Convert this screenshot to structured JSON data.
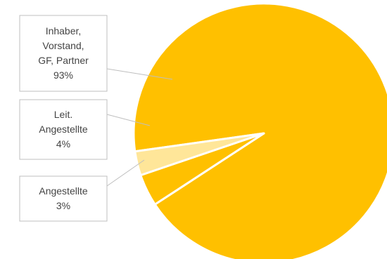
{
  "chart_data": {
    "type": "pie",
    "slices": [
      {
        "label_lines": [
          "Inhaber,",
          "Vorstand,",
          "GF, Partner"
        ],
        "value_label": "93%",
        "value": 93,
        "color": "#FFC000"
      },
      {
        "label_lines": [
          "Leit.",
          "Angestellte"
        ],
        "value_label": "4%",
        "value": 4,
        "color": "#FFC000"
      },
      {
        "label_lines": [
          "Angestellte"
        ],
        "value_label": "3%",
        "value": 3,
        "color": "#FFE699"
      }
    ],
    "legend": "none",
    "slice_border_color": "#ffffff"
  }
}
